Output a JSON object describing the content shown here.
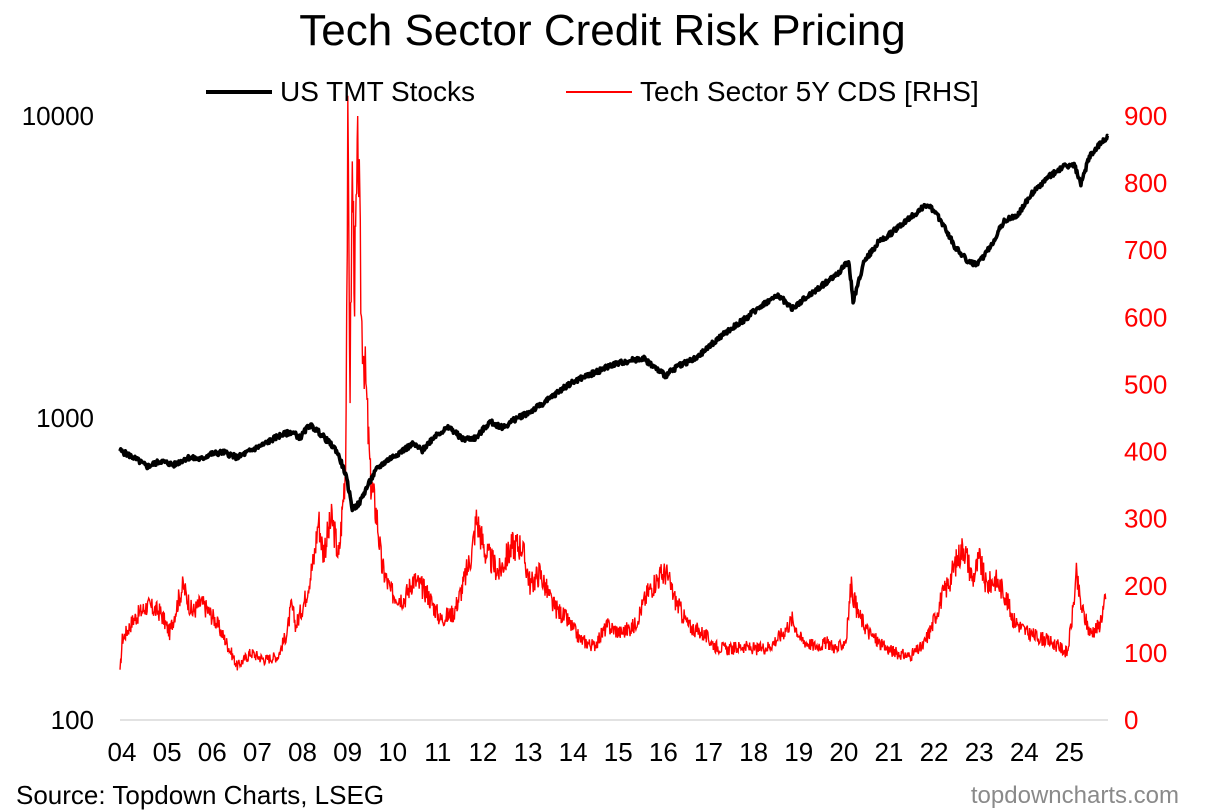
{
  "page": {
    "source": "Source: Topdown Charts, LSEG",
    "brand": "topdowncharts.com"
  },
  "chart_data": {
    "type": "line",
    "title": "Tech Sector Credit Risk Pricing",
    "legend": [
      {
        "name": "US TMT Stocks",
        "color": "#000000"
      },
      {
        "name": "Tech Sector 5Y CDS [RHS]",
        "color": "#ff0000"
      }
    ],
    "x_ticks": [
      "04",
      "05",
      "06",
      "07",
      "08",
      "09",
      "10",
      "11",
      "12",
      "13",
      "14",
      "15",
      "16",
      "17",
      "18",
      "19",
      "20",
      "21",
      "22",
      "23",
      "24",
      "25"
    ],
    "x_range": [
      2004.0,
      2025.9
    ],
    "y_left": {
      "scale": "log",
      "range": [
        100,
        10000
      ],
      "ticks": [
        "100",
        "1000",
        "10000"
      ],
      "tick_values": [
        100,
        1000,
        10000
      ]
    },
    "y_right": {
      "scale": "linear",
      "range": [
        0,
        900
      ],
      "ticks": [
        "0",
        "100",
        "200",
        "300",
        "400",
        "500",
        "600",
        "700",
        "800",
        "900"
      ],
      "tick_values": [
        0,
        100,
        200,
        300,
        400,
        500,
        600,
        700,
        800,
        900
      ],
      "color": "#ff0000"
    },
    "series": [
      {
        "name": "US TMT Stocks",
        "axis": "left",
        "color": "#000000",
        "points": [
          [
            2004.0,
            780
          ],
          [
            2004.3,
            740
          ],
          [
            2004.6,
            690
          ],
          [
            2004.9,
            720
          ],
          [
            2005.2,
            700
          ],
          [
            2005.5,
            740
          ],
          [
            2005.8,
            730
          ],
          [
            2006.0,
            760
          ],
          [
            2006.3,
            770
          ],
          [
            2006.6,
            740
          ],
          [
            2006.9,
            780
          ],
          [
            2007.2,
            820
          ],
          [
            2007.5,
            870
          ],
          [
            2007.8,
            900
          ],
          [
            2008.0,
            860
          ],
          [
            2008.2,
            950
          ],
          [
            2008.4,
            900
          ],
          [
            2008.6,
            840
          ],
          [
            2008.8,
            780
          ],
          [
            2009.0,
            650
          ],
          [
            2009.15,
            500
          ],
          [
            2009.3,
            520
          ],
          [
            2009.5,
            600
          ],
          [
            2009.7,
            680
          ],
          [
            2009.9,
            720
          ],
          [
            2010.2,
            770
          ],
          [
            2010.5,
            820
          ],
          [
            2010.7,
            780
          ],
          [
            2011.0,
            880
          ],
          [
            2011.3,
            930
          ],
          [
            2011.6,
            850
          ],
          [
            2011.9,
            860
          ],
          [
            2012.2,
            970
          ],
          [
            2012.5,
            930
          ],
          [
            2012.8,
            1000
          ],
          [
            2013.1,
            1050
          ],
          [
            2013.5,
            1150
          ],
          [
            2013.9,
            1280
          ],
          [
            2014.2,
            1350
          ],
          [
            2014.6,
            1430
          ],
          [
            2014.9,
            1500
          ],
          [
            2015.3,
            1550
          ],
          [
            2015.6,
            1580
          ],
          [
            2015.9,
            1450
          ],
          [
            2016.1,
            1380
          ],
          [
            2016.4,
            1500
          ],
          [
            2016.8,
            1580
          ],
          [
            2017.1,
            1750
          ],
          [
            2017.5,
            1950
          ],
          [
            2017.9,
            2150
          ],
          [
            2018.2,
            2350
          ],
          [
            2018.6,
            2550
          ],
          [
            2018.9,
            2300
          ],
          [
            2019.2,
            2500
          ],
          [
            2019.5,
            2700
          ],
          [
            2019.9,
            3000
          ],
          [
            2020.15,
            3300
          ],
          [
            2020.25,
            2400
          ],
          [
            2020.5,
            3300
          ],
          [
            2020.8,
            3800
          ],
          [
            2021.1,
            4100
          ],
          [
            2021.5,
            4600
          ],
          [
            2021.9,
            5100
          ],
          [
            2022.2,
            4500
          ],
          [
            2022.5,
            3700
          ],
          [
            2022.8,
            3300
          ],
          [
            2023.0,
            3200
          ],
          [
            2023.3,
            3700
          ],
          [
            2023.6,
            4500
          ],
          [
            2023.9,
            4700
          ],
          [
            2024.2,
            5500
          ],
          [
            2024.6,
            6300
          ],
          [
            2024.9,
            6800
          ],
          [
            2025.15,
            6900
          ],
          [
            2025.3,
            5900
          ],
          [
            2025.5,
            7400
          ],
          [
            2025.9,
            8600
          ]
        ]
      },
      {
        "name": "Tech Sector 5Y CDS [RHS]",
        "axis": "right",
        "color": "#ff0000",
        "points": [
          [
            2004.0,
            70
          ],
          [
            2004.05,
            120
          ],
          [
            2004.3,
            150
          ],
          [
            2004.6,
            170
          ],
          [
            2004.9,
            160
          ],
          [
            2005.1,
            130
          ],
          [
            2005.3,
            180
          ],
          [
            2005.4,
            200
          ],
          [
            2005.6,
            160
          ],
          [
            2005.8,
            175
          ],
          [
            2006.1,
            150
          ],
          [
            2006.4,
            110
          ],
          [
            2006.6,
            80
          ],
          [
            2006.9,
            100
          ],
          [
            2007.2,
            90
          ],
          [
            2007.5,
            95
          ],
          [
            2007.7,
            130
          ],
          [
            2007.8,
            170
          ],
          [
            2007.9,
            140
          ],
          [
            2008.1,
            180
          ],
          [
            2008.3,
            240
          ],
          [
            2008.4,
            300
          ],
          [
            2008.5,
            250
          ],
          [
            2008.7,
            300
          ],
          [
            2008.85,
            240
          ],
          [
            2009.0,
            380
          ],
          [
            2009.05,
            860
          ],
          [
            2009.1,
            500
          ],
          [
            2009.15,
            820
          ],
          [
            2009.2,
            650
          ],
          [
            2009.28,
            860
          ],
          [
            2009.35,
            600
          ],
          [
            2009.45,
            500
          ],
          [
            2009.55,
            360
          ],
          [
            2009.7,
            300
          ],
          [
            2009.8,
            230
          ],
          [
            2010.0,
            190
          ],
          [
            2010.3,
            180
          ],
          [
            2010.5,
            210
          ],
          [
            2010.8,
            190
          ],
          [
            2011.1,
            150
          ],
          [
            2011.4,
            160
          ],
          [
            2011.6,
            200
          ],
          [
            2011.8,
            250
          ],
          [
            2011.9,
            300
          ],
          [
            2012.1,
            250
          ],
          [
            2012.4,
            220
          ],
          [
            2012.7,
            260
          ],
          [
            2012.9,
            260
          ],
          [
            2013.1,
            200
          ],
          [
            2013.3,
            220
          ],
          [
            2013.6,
            170
          ],
          [
            2013.9,
            150
          ],
          [
            2014.2,
            120
          ],
          [
            2014.5,
            110
          ],
          [
            2014.8,
            140
          ],
          [
            2015.1,
            130
          ],
          [
            2015.4,
            140
          ],
          [
            2015.7,
            190
          ],
          [
            2015.9,
            210
          ],
          [
            2016.1,
            220
          ],
          [
            2016.3,
            180
          ],
          [
            2016.6,
            140
          ],
          [
            2016.9,
            130
          ],
          [
            2017.2,
            110
          ],
          [
            2017.5,
            105
          ],
          [
            2017.8,
            110
          ],
          [
            2018.1,
            105
          ],
          [
            2018.4,
            110
          ],
          [
            2018.7,
            130
          ],
          [
            2018.9,
            150
          ],
          [
            2019.1,
            120
          ],
          [
            2019.4,
            110
          ],
          [
            2019.7,
            115
          ],
          [
            2019.9,
            105
          ],
          [
            2020.1,
            120
          ],
          [
            2020.2,
            200
          ],
          [
            2020.35,
            160
          ],
          [
            2020.6,
            130
          ],
          [
            2020.9,
            110
          ],
          [
            2021.2,
            100
          ],
          [
            2021.5,
            95
          ],
          [
            2021.8,
            110
          ],
          [
            2022.0,
            140
          ],
          [
            2022.2,
            180
          ],
          [
            2022.4,
            210
          ],
          [
            2022.5,
            230
          ],
          [
            2022.7,
            260
          ],
          [
            2022.9,
            210
          ],
          [
            2023.05,
            240
          ],
          [
            2023.2,
            200
          ],
          [
            2023.4,
            210
          ],
          [
            2023.6,
            190
          ],
          [
            2023.8,
            150
          ],
          [
            2024.1,
            130
          ],
          [
            2024.5,
            120
          ],
          [
            2024.8,
            110
          ],
          [
            2025.0,
            100
          ],
          [
            2025.1,
            150
          ],
          [
            2025.2,
            215
          ],
          [
            2025.3,
            170
          ],
          [
            2025.5,
            130
          ],
          [
            2025.7,
            140
          ],
          [
            2025.85,
            180
          ]
        ]
      }
    ]
  }
}
